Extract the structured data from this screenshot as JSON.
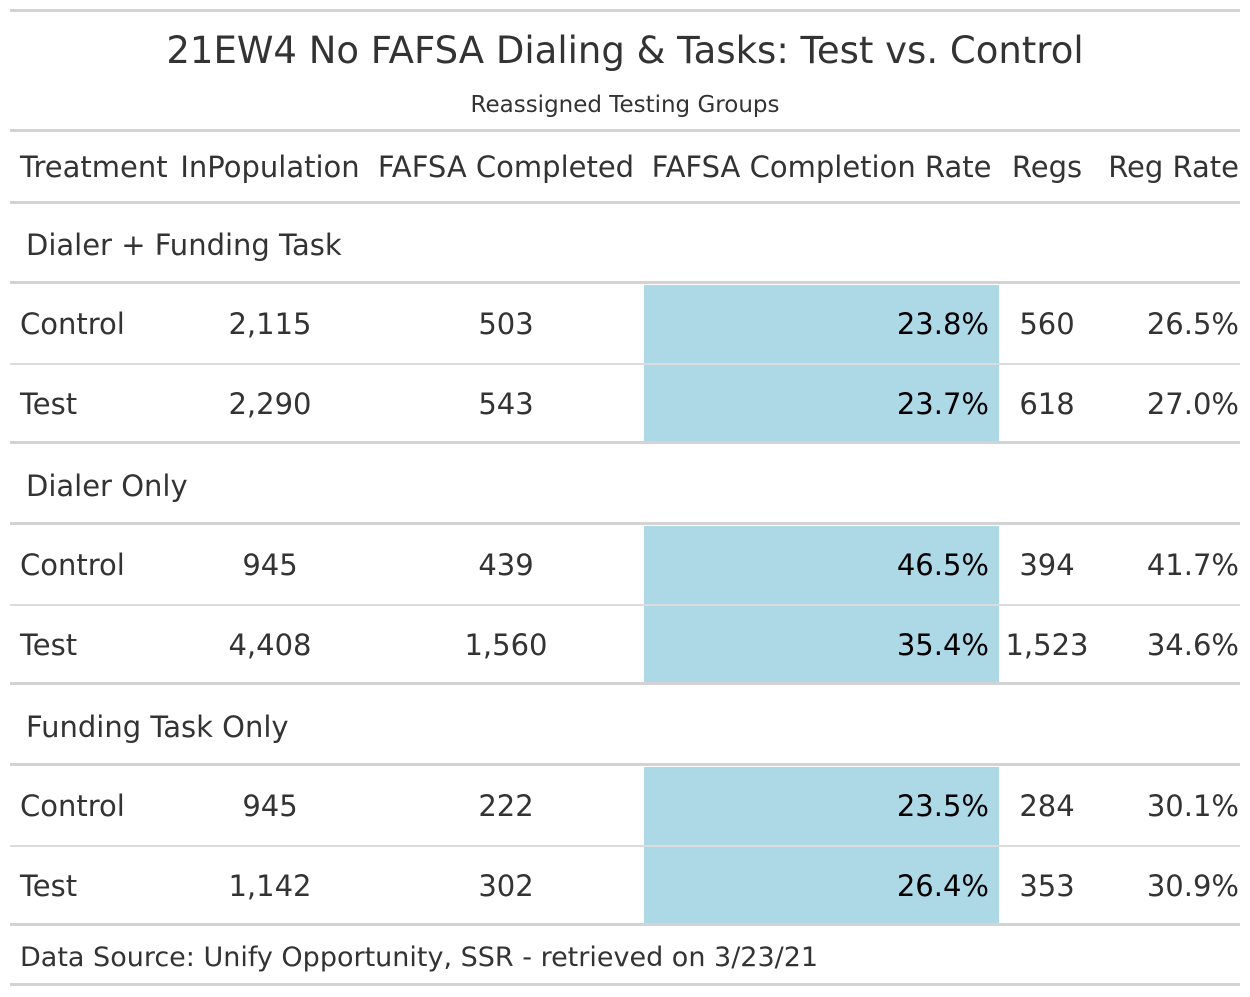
{
  "title": "21EW4 No FAFSA Dialing & Tasks: Test vs. Control",
  "subtitle": "Reassigned Testing Groups",
  "columns": {
    "treatment": "Treatment",
    "in_population": "InPopulation",
    "fafsa_completed": "FAFSA Completed",
    "fafsa_completion_rate": "FAFSA Completion Rate",
    "regs": "Regs",
    "reg_rate": "Reg Rate"
  },
  "highlight_color": "#add8e6",
  "groups": [
    {
      "label": "Dialer + Funding Task",
      "rows": [
        {
          "treatment": "Control",
          "in_population": "2,115",
          "fafsa_completed": "503",
          "fafsa_completion_rate": "23.8%",
          "regs": "560",
          "reg_rate": "26.5%"
        },
        {
          "treatment": "Test",
          "in_population": "2,290",
          "fafsa_completed": "543",
          "fafsa_completion_rate": "23.7%",
          "regs": "618",
          "reg_rate": "27.0%"
        }
      ]
    },
    {
      "label": "Dialer Only",
      "rows": [
        {
          "treatment": "Control",
          "in_population": "945",
          "fafsa_completed": "439",
          "fafsa_completion_rate": "46.5%",
          "regs": "394",
          "reg_rate": "41.7%"
        },
        {
          "treatment": "Test",
          "in_population": "4,408",
          "fafsa_completed": "1,560",
          "fafsa_completion_rate": "35.4%",
          "regs": "1,523",
          "reg_rate": "34.6%"
        }
      ]
    },
    {
      "label": "Funding Task Only",
      "rows": [
        {
          "treatment": "Control",
          "in_population": "945",
          "fafsa_completed": "222",
          "fafsa_completion_rate": "23.5%",
          "regs": "284",
          "reg_rate": "30.1%"
        },
        {
          "treatment": "Test",
          "in_population": "1,142",
          "fafsa_completed": "302",
          "fafsa_completion_rate": "26.4%",
          "regs": "353",
          "reg_rate": "30.9%"
        }
      ]
    }
  ],
  "footer": "Data Source: Unify Opportunity, SSR - retrieved on 3/23/21"
}
